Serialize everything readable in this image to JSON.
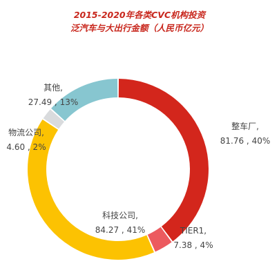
{
  "chart_data": {
    "type": "pie",
    "title": "2015-2020年各类CVC机构投资",
    "subtitle": "泛汽车与大出行金额（人民币亿元）",
    "series": [
      {
        "name": "整车厂",
        "value": 81.76,
        "value_label": "81.76",
        "percent_label": "40%",
        "color": "#d3261c"
      },
      {
        "name": "TIER1",
        "value": 7.38,
        "value_label": "7.38",
        "percent_label": "4%",
        "color": "#ec5a5f"
      },
      {
        "name": "科技公司",
        "value": 84.27,
        "value_label": "84.27",
        "percent_label": "41%",
        "color": "#fcc202"
      },
      {
        "name": "物流公司",
        "value": 4.6,
        "value_label": "4.60",
        "percent_label": "2%",
        "color": "#d9dbdd"
      },
      {
        "name": "其他",
        "value": 27.49,
        "value_label": "27.49",
        "percent_label": "13%",
        "color": "#87c6d0"
      }
    ],
    "start_angle": "12 o'clock",
    "direction": "clockwise",
    "legend": "none"
  }
}
